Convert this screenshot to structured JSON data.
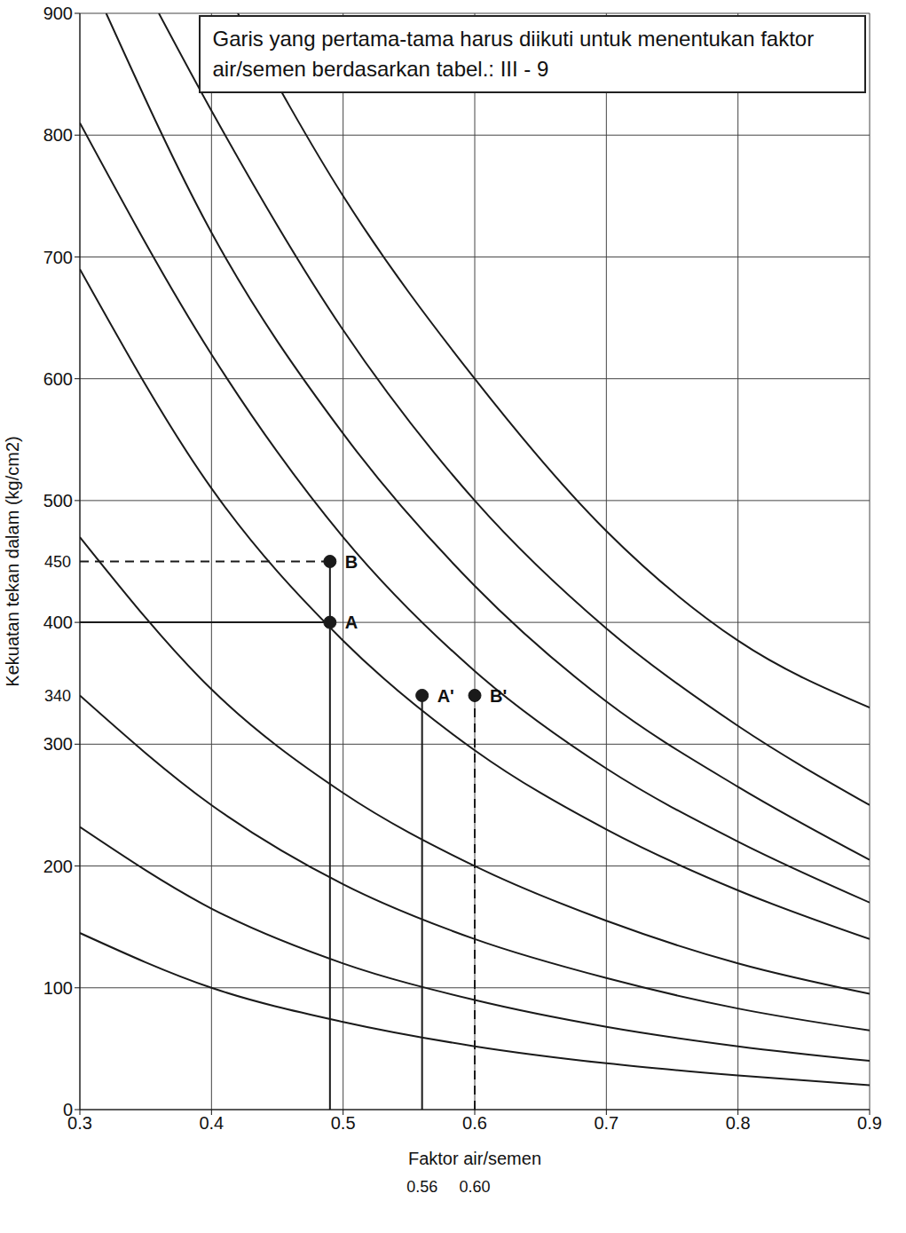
{
  "chart_data": {
    "type": "line",
    "title": "Garis yang pertama-tama harus diikuti untuk menentukan faktor air/semen berdasarkan tabel.: III - 9",
    "x_label": "Faktor air/semen",
    "y_label": "Kekuatan tekan dalam (kg/cm2)",
    "xlim": [
      0.3,
      0.9
    ],
    "xticks": [
      0.3,
      0.4,
      0.5,
      0.6,
      0.7,
      0.8,
      0.9
    ],
    "ylim": [
      0,
      900
    ],
    "yticks": [
      0,
      100,
      200,
      300,
      400,
      500,
      600,
      700,
      800,
      900
    ],
    "grid": true,
    "color": "#1a1a1a",
    "series": [
      {
        "x": [
          0.3,
          0.4,
          0.5,
          0.6,
          0.7,
          0.8,
          0.9
        ],
        "values": [
          145,
          100,
          72,
          52,
          38,
          28,
          20
        ],
        "line_style": "solid"
      },
      {
        "x": [
          0.3,
          0.4,
          0.5,
          0.6,
          0.7,
          0.8,
          0.9
        ],
        "values": [
          232,
          165,
          120,
          90,
          68,
          52,
          40
        ],
        "line_style": "solid"
      },
      {
        "x": [
          0.3,
          0.4,
          0.5,
          0.6,
          0.7,
          0.8,
          0.9
        ],
        "values": [
          340,
          250,
          185,
          140,
          108,
          83,
          65
        ],
        "line_style": "solid"
      },
      {
        "x": [
          0.3,
          0.4,
          0.5,
          0.6,
          0.7,
          0.8,
          0.9
        ],
        "values": [
          470,
          345,
          260,
          200,
          155,
          120,
          95
        ],
        "line_style": "solid"
      },
      {
        "x": [
          0.3,
          0.4,
          0.5,
          0.6,
          0.7,
          0.8,
          0.9
        ],
        "values": [
          690,
          510,
          385,
          295,
          230,
          180,
          140
        ],
        "line_style": "solid"
      },
      {
        "x": [
          0.3,
          0.4,
          0.5,
          0.6,
          0.7,
          0.8,
          0.9
        ],
        "values": [
          810,
          620,
          470,
          360,
          280,
          220,
          170
        ],
        "line_style": "solid"
      },
      {
        "x": [
          0.32,
          0.4,
          0.5,
          0.6,
          0.7,
          0.8,
          0.9
        ],
        "values": [
          900,
          720,
          555,
          430,
          335,
          265,
          205
        ],
        "line_style": "solid"
      },
      {
        "x": [
          0.36,
          0.4,
          0.5,
          0.6,
          0.7,
          0.8,
          0.9
        ],
        "values": [
          900,
          820,
          640,
          500,
          395,
          315,
          250
        ],
        "line_style": "solid"
      },
      {
        "x": [
          0.42,
          0.5,
          0.6,
          0.7,
          0.8,
          0.9
        ],
        "values": [
          900,
          750,
          600,
          475,
          385,
          330
        ],
        "line_style": "solid"
      },
      {
        "x": [
          0.3,
          0.49
        ],
        "values": [
          450,
          450
        ],
        "line_style": "dashed"
      },
      {
        "x": [
          0.3,
          0.49
        ],
        "values": [
          400,
          400
        ],
        "line_style": "solid"
      },
      {
        "x": [
          0.49,
          0.49
        ],
        "values": [
          0,
          450
        ],
        "line_style": "solid"
      },
      {
        "x": [
          0.56,
          0.56
        ],
        "values": [
          0,
          340
        ],
        "line_style": "solid"
      },
      {
        "x": [
          0.6,
          0.6
        ],
        "values": [
          0,
          340
        ],
        "line_style": "dashed"
      }
    ],
    "points": {
      "labels": [
        "A",
        "B",
        "A'",
        "B'"
      ],
      "x": [
        0.49,
        0.49,
        0.56,
        0.6
      ],
      "values": [
        400,
        450,
        340,
        340
      ]
    },
    "annotations": [
      {
        "text": "450",
        "x": 0.3,
        "y": 450
      },
      {
        "text": "340",
        "x": 0.3,
        "y": 340
      },
      {
        "text": "0.56",
        "x": 0.56,
        "y": 0
      },
      {
        "text": "0.60",
        "x": 0.6,
        "y": 0
      }
    ]
  }
}
